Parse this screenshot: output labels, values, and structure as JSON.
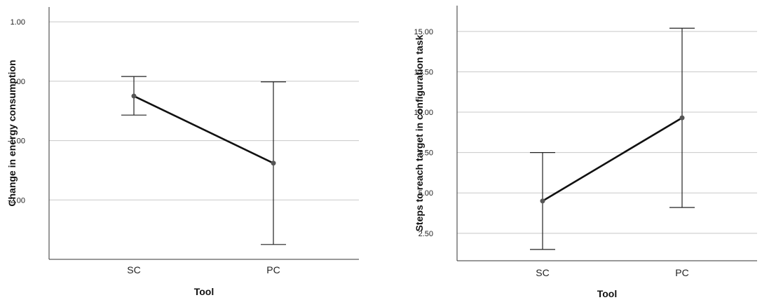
{
  "chart_data": [
    {
      "type": "line",
      "xlabel": "Tool",
      "ylabel": "Change in energy consumption",
      "categories": [
        "SC",
        "PC"
      ],
      "yticks": [
        1.0,
        0.0,
        -1.0,
        -2.0
      ],
      "ytick_labels": [
        "1.00",
        ".00",
        "-1.00",
        "-2.00"
      ],
      "ylim": [
        -3.0,
        1.25
      ],
      "grid": true,
      "series": [
        {
          "values": [
            -0.25,
            -1.38
          ],
          "error_low": [
            -0.57,
            -2.75
          ],
          "error_high": [
            0.08,
            -0.01
          ]
        }
      ]
    },
    {
      "type": "line",
      "xlabel": "Tool",
      "ylabel": "Steps to reach target in configuration task",
      "categories": [
        "SC",
        "PC"
      ],
      "yticks": [
        2.5,
        5.0,
        7.5,
        10.0,
        12.5,
        15.0
      ],
      "ytick_labels": [
        "2.50",
        "5.00",
        "7.50",
        "10.00",
        "12.50",
        "15.00"
      ],
      "ylim": [
        0.8,
        16.6
      ],
      "grid": true,
      "series": [
        {
          "values": [
            4.5,
            9.65
          ],
          "error_low": [
            1.5,
            4.1
          ],
          "error_high": [
            7.5,
            15.2
          ]
        }
      ]
    }
  ]
}
